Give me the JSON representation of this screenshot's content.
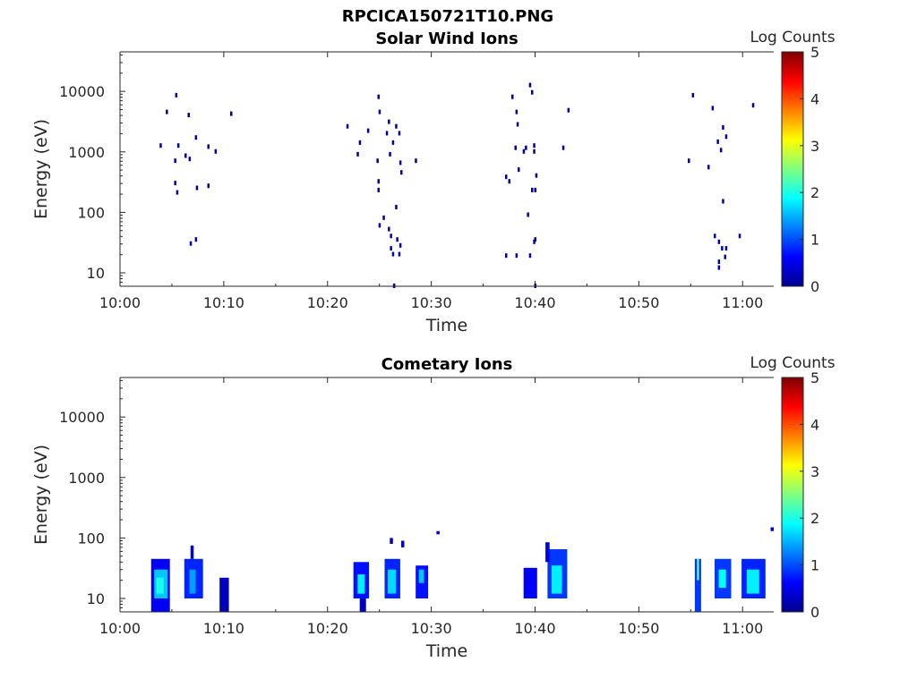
{
  "figure_title": "RPCICA150721T10.PNG",
  "colors": {
    "background": "#ffffff",
    "axis": "#262626",
    "cmap": "jet"
  },
  "chart_data": [
    {
      "type": "heatmap",
      "title": "Solar Wind Ions",
      "xlabel": "Time",
      "ylabel": "Energy (eV)",
      "xscale": "time",
      "yscale": "log",
      "xlim": [
        "10:00",
        "11:03"
      ],
      "ylim": [
        6,
        45000
      ],
      "xticks": [
        "10:00",
        "10:10",
        "10:20",
        "10:30",
        "10:40",
        "10:50",
        "11:00"
      ],
      "yticks": [
        "10",
        "100",
        "1000",
        "10000"
      ],
      "colorbar": {
        "label": "Log Counts",
        "min": 0,
        "max": 5,
        "ticks": [
          "0",
          "1",
          "2",
          "3",
          "4",
          "5"
        ]
      },
      "cells": [
        {
          "t": "10:03.9",
          "e": 1250,
          "v": 0.1
        },
        {
          "t": "10:04.5",
          "e": 4500,
          "v": 0.1
        },
        {
          "t": "10:05.4",
          "e": 8500,
          "v": 0.1
        },
        {
          "t": "10:05.3",
          "e": 700,
          "v": 0.1
        },
        {
          "t": "10:05.6",
          "e": 1250,
          "v": 0.1
        },
        {
          "t": "10:05.3",
          "e": 300,
          "v": 0.1
        },
        {
          "t": "10:05.5",
          "e": 210,
          "v": 0.1
        },
        {
          "t": "10:06.3",
          "e": 850,
          "v": 0.1
        },
        {
          "t": "10:06.6",
          "e": 4000,
          "v": 0.1
        },
        {
          "t": "10:06.7",
          "e": 750,
          "v": 0.1
        },
        {
          "t": "10:07.3",
          "e": 1700,
          "v": 0.1
        },
        {
          "t": "10:07.4",
          "e": 250,
          "v": 0.1
        },
        {
          "t": "10:08.5",
          "e": 1200,
          "v": 0.1
        },
        {
          "t": "10:08.5",
          "e": 270,
          "v": 0.1
        },
        {
          "t": "10:09.2",
          "e": 1000,
          "v": 0.1
        },
        {
          "t": "10:10.7",
          "e": 4200,
          "v": 0.1
        },
        {
          "t": "10:06.8",
          "e": 30,
          "v": 0.2
        },
        {
          "t": "10:07.3",
          "e": 35,
          "v": 0.2
        },
        {
          "t": "10:21.9",
          "e": 2600,
          "v": 0.1
        },
        {
          "t": "10:23.1",
          "e": 1400,
          "v": 0.1
        },
        {
          "t": "10:22.9",
          "e": 900,
          "v": 0.1
        },
        {
          "t": "10:23.9",
          "e": 2200,
          "v": 0.1
        },
        {
          "t": "10:24.9",
          "e": 8000,
          "v": 0.1
        },
        {
          "t": "10:25.0",
          "e": 4500,
          "v": 0.1
        },
        {
          "t": "10:25.7",
          "e": 2000,
          "v": 0.1
        },
        {
          "t": "10:25.9",
          "e": 3100,
          "v": 0.1
        },
        {
          "t": "10:26.3",
          "e": 1400,
          "v": 0.1
        },
        {
          "t": "10:26.6",
          "e": 2600,
          "v": 0.1
        },
        {
          "t": "10:26.9",
          "e": 2000,
          "v": 0.1
        },
        {
          "t": "10:24.8",
          "e": 700,
          "v": 0.1
        },
        {
          "t": "10:24.9",
          "e": 320,
          "v": 0.1
        },
        {
          "t": "10:24.9",
          "e": 230,
          "v": 0.1
        },
        {
          "t": "10:26.0",
          "e": 900,
          "v": 0.1
        },
        {
          "t": "10:27.0",
          "e": 650,
          "v": 0.1
        },
        {
          "t": "10:27.1",
          "e": 450,
          "v": 0.1
        },
        {
          "t": "10:28.5",
          "e": 700,
          "v": 0.1
        },
        {
          "t": "10:26.6",
          "e": 120,
          "v": 0.1
        },
        {
          "t": "10:25.0",
          "e": 60,
          "v": 0.2
        },
        {
          "t": "10:25.4",
          "e": 80,
          "v": 0.2
        },
        {
          "t": "10:25.9",
          "e": 52,
          "v": 0.2
        },
        {
          "t": "10:26.1",
          "e": 40,
          "v": 0.2
        },
        {
          "t": "10:26.1",
          "e": 25,
          "v": 0.2
        },
        {
          "t": "10:26.3",
          "e": 20,
          "v": 0.2
        },
        {
          "t": "10:26.7",
          "e": 35,
          "v": 0.2
        },
        {
          "t": "10:26.9",
          "e": 20,
          "v": 0.2
        },
        {
          "t": "10:27.0",
          "e": 28,
          "v": 0.2
        },
        {
          "t": "10:26.4",
          "e": 6,
          "v": 0.1
        },
        {
          "t": "10:37.2",
          "e": 380,
          "v": 0.1
        },
        {
          "t": "10:37.5",
          "e": 320,
          "v": 0.1
        },
        {
          "t": "10:37.8",
          "e": 8000,
          "v": 0.1
        },
        {
          "t": "10:38.2",
          "e": 4500,
          "v": 0.1
        },
        {
          "t": "10:38.3",
          "e": 2800,
          "v": 0.1
        },
        {
          "t": "10:38.1",
          "e": 1150,
          "v": 0.1
        },
        {
          "t": "10:38.4",
          "e": 500,
          "v": 0.1
        },
        {
          "t": "10:38.9",
          "e": 1000,
          "v": 0.1
        },
        {
          "t": "10:39.5",
          "e": 12500,
          "v": 0.1
        },
        {
          "t": "10:39.7",
          "e": 9500,
          "v": 0.1
        },
        {
          "t": "10:39.9",
          "e": 1250,
          "v": 0.1
        },
        {
          "t": "10:39.9",
          "e": 1000,
          "v": 0.1
        },
        {
          "t": "10:39.1",
          "e": 1150,
          "v": 0.1
        },
        {
          "t": "10:40.1",
          "e": 400,
          "v": 0.1
        },
        {
          "t": "10:39.7",
          "e": 230,
          "v": 0.1
        },
        {
          "t": "10:40.0",
          "e": 230,
          "v": 0.1
        },
        {
          "t": "10:42.7",
          "e": 1150,
          "v": 0.1
        },
        {
          "t": "10:43.2",
          "e": 4800,
          "v": 0.1
        },
        {
          "t": "10:39.3",
          "e": 90,
          "v": 0.2
        },
        {
          "t": "10:39.9",
          "e": 32,
          "v": 0.2
        },
        {
          "t": "10:40.0",
          "e": 35,
          "v": 0.2
        },
        {
          "t": "10:37.2",
          "e": 19,
          "v": 0.2
        },
        {
          "t": "10:38.2",
          "e": 19,
          "v": 0.2
        },
        {
          "t": "10:39.5",
          "e": 19,
          "v": 0.2
        },
        {
          "t": "10:40.0",
          "e": 6,
          "v": 0.1
        },
        {
          "t": "10:54.8",
          "e": 700,
          "v": 0.1
        },
        {
          "t": "10:55.2",
          "e": 8500,
          "v": 0.1
        },
        {
          "t": "10:56.7",
          "e": 550,
          "v": 0.1
        },
        {
          "t": "10:57.1",
          "e": 5200,
          "v": 0.1
        },
        {
          "t": "10:57.6",
          "e": 1450,
          "v": 0.1
        },
        {
          "t": "10:57.9",
          "e": 1050,
          "v": 0.1
        },
        {
          "t": "10:58.1",
          "e": 2500,
          "v": 0.1
        },
        {
          "t": "10:58.4",
          "e": 1750,
          "v": 0.1
        },
        {
          "t": "10:58.1",
          "e": 150,
          "v": 0.1
        },
        {
          "t": "11:01.0",
          "e": 5800,
          "v": 0.1
        },
        {
          "t": "10:57.3",
          "e": 40,
          "v": 0.2
        },
        {
          "t": "10:57.7",
          "e": 32,
          "v": 0.2
        },
        {
          "t": "10:58.0",
          "e": 25,
          "v": 0.2
        },
        {
          "t": "10:58.4",
          "e": 25,
          "v": 0.2
        },
        {
          "t": "10:58.3",
          "e": 18,
          "v": 0.2
        },
        {
          "t": "10:57.7",
          "e": 15,
          "v": 0.2
        },
        {
          "t": "10:57.7",
          "e": 12,
          "v": 0.2
        },
        {
          "t": "10:59.7",
          "e": 40,
          "v": 0.2
        }
      ]
    },
    {
      "type": "heatmap",
      "title": "Cometary Ions",
      "xlabel": "Time",
      "ylabel": "Energy (eV)",
      "xscale": "time",
      "yscale": "log",
      "xlim": [
        "10:00",
        "11:03"
      ],
      "ylim": [
        6,
        45000
      ],
      "xticks": [
        "10:00",
        "10:10",
        "10:20",
        "10:30",
        "10:40",
        "10:50",
        "11:00"
      ],
      "yticks": [
        "10",
        "100",
        "1000",
        "10000"
      ],
      "colorbar": {
        "label": "Log Counts",
        "min": 0,
        "max": 5,
        "ticks": [
          "0",
          "1",
          "2",
          "3",
          "4",
          "5"
        ]
      },
      "regions": [
        {
          "t0": "10:03.0",
          "t1": "10:04.8",
          "e0": 6,
          "e1": 45,
          "v": 0.6
        },
        {
          "t0": "10:03.3",
          "t1": "10:04.6",
          "e0": 10,
          "e1": 30,
          "v": 1.6
        },
        {
          "t0": "10:03.5",
          "t1": "10:04.2",
          "e0": 12,
          "e1": 22,
          "v": 2.0
        },
        {
          "t0": "10:06.2",
          "t1": "10:08.0",
          "e0": 10,
          "e1": 45,
          "v": 0.8
        },
        {
          "t0": "10:06.7",
          "t1": "10:07.3",
          "e0": 12,
          "e1": 30,
          "v": 1.4
        },
        {
          "t0": "10:06.8",
          "t1": "10:07.1",
          "e0": 45,
          "e1": 75,
          "v": 0.4
        },
        {
          "t0": "10:09.6",
          "t1": "10:10.5",
          "e0": 6,
          "e1": 22,
          "v": 0.3
        },
        {
          "t0": "10:22.5",
          "t1": "10:24.0",
          "e0": 10,
          "e1": 40,
          "v": 0.7
        },
        {
          "t0": "10:22.9",
          "t1": "10:23.6",
          "e0": 12,
          "e1": 25,
          "v": 1.8
        },
        {
          "t0": "10:23.1",
          "t1": "10:23.7",
          "e0": 6,
          "e1": 10,
          "v": 0.3
        },
        {
          "t0": "10:25.5",
          "t1": "10:27.0",
          "e0": 10,
          "e1": 45,
          "v": 0.8
        },
        {
          "t0": "10:25.8",
          "t1": "10:26.6",
          "e0": 12,
          "e1": 30,
          "v": 1.7
        },
        {
          "t0": "10:26.0",
          "t1": "10:26.3",
          "e0": 80,
          "e1": 100,
          "v": 0.4
        },
        {
          "t0": "10:27.1",
          "t1": "10:27.4",
          "e0": 70,
          "e1": 90,
          "v": 0.4
        },
        {
          "t0": "10:28.5",
          "t1": "10:29.7",
          "e0": 10,
          "e1": 35,
          "v": 0.7
        },
        {
          "t0": "10:28.8",
          "t1": "10:29.3",
          "e0": 18,
          "e1": 30,
          "v": 1.6
        },
        {
          "t0": "10:30.5",
          "t1": "10:30.8",
          "e0": 115,
          "e1": 130,
          "v": 0.4
        },
        {
          "t0": "10:38.9",
          "t1": "10:40.2",
          "e0": 10,
          "e1": 32,
          "v": 0.6
        },
        {
          "t0": "10:41.2",
          "t1": "10:43.1",
          "e0": 10,
          "e1": 65,
          "v": 0.9
        },
        {
          "t0": "10:41.6",
          "t1": "10:42.6",
          "e0": 12,
          "e1": 35,
          "v": 1.8
        },
        {
          "t0": "10:41.0",
          "t1": "10:41.4",
          "e0": 40,
          "e1": 85,
          "v": 0.5
        },
        {
          "t0": "10:55.4",
          "t1": "10:56.0",
          "e0": 6,
          "e1": 45,
          "v": 0.9
        },
        {
          "t0": "10:55.6",
          "t1": "10:55.8",
          "e0": 20,
          "e1": 45,
          "v": 2.4
        },
        {
          "t0": "10:57.3",
          "t1": "10:58.9",
          "e0": 10,
          "e1": 45,
          "v": 0.9
        },
        {
          "t0": "10:57.7",
          "t1": "10:58.4",
          "e0": 15,
          "e1": 30,
          "v": 1.9
        },
        {
          "t0": "10:59.9",
          "t1": "11:02.2",
          "e0": 10,
          "e1": 45,
          "v": 0.8
        },
        {
          "t0": "11:00.4",
          "t1": "11:01.6",
          "e0": 12,
          "e1": 30,
          "v": 1.8
        },
        {
          "t0": "11:02.7",
          "t1": "11:03.0",
          "e0": 130,
          "e1": 150,
          "v": 0.4
        }
      ]
    }
  ]
}
